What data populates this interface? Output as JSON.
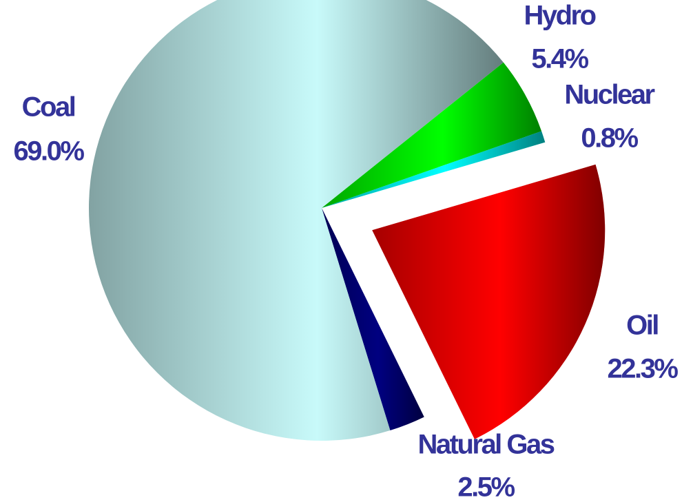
{
  "chart_data": {
    "type": "pie",
    "categories": [
      "Hydro",
      "Nuclear",
      "Oil",
      "Natural Gas",
      "Coal"
    ],
    "values": [
      5.4,
      0.8,
      22.3,
      2.5,
      69.0
    ],
    "value_labels": [
      "5.4%",
      "0.8%",
      "22.3%",
      "2.5%",
      "69.0%"
    ],
    "colors": [
      "#00ff00",
      "#00ffff",
      "#ff0000",
      "#000080",
      "#c8fafa"
    ],
    "explode": [
      false,
      false,
      true,
      false,
      false
    ]
  }
}
